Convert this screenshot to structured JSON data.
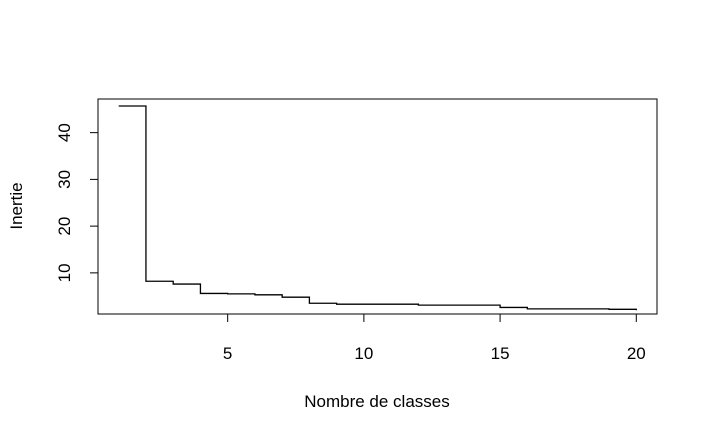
{
  "chart_data": {
    "type": "line",
    "step": true,
    "title": "",
    "xlabel": "Nombre de classes",
    "ylabel": "Inertie",
    "xlim": [
      0.24,
      20.76
    ],
    "ylim": [
      1.2,
      47.2
    ],
    "xticks": [
      5,
      10,
      15,
      20
    ],
    "yticks": [
      10,
      20,
      30,
      40
    ],
    "grid": false,
    "x": [
      1,
      2,
      3,
      4,
      5,
      6,
      7,
      8,
      9,
      10,
      11,
      12,
      13,
      14,
      15,
      16,
      17,
      18,
      19,
      20
    ],
    "y": [
      45.7,
      8.2,
      7.6,
      5.6,
      5.5,
      5.3,
      4.8,
      3.5,
      3.3,
      3.3,
      3.3,
      3.1,
      3.1,
      3.1,
      2.6,
      2.3,
      2.3,
      2.3,
      2.2,
      2.0
    ]
  }
}
